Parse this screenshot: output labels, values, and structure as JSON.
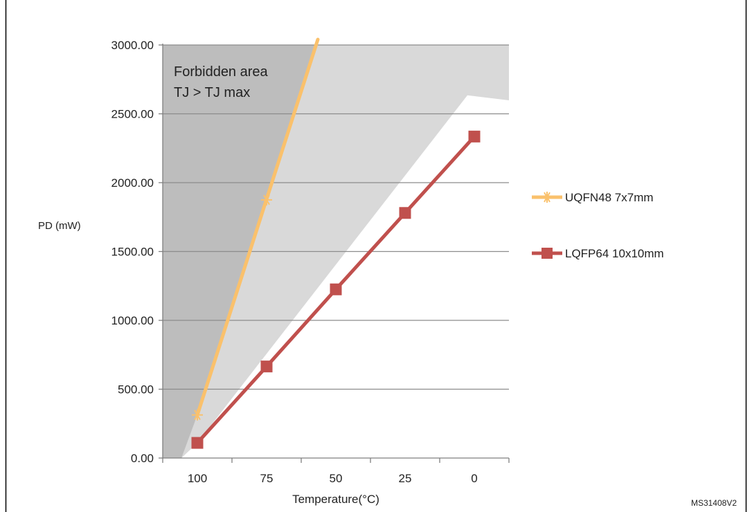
{
  "figure_id": "MS31408V2",
  "chart_data": {
    "type": "line",
    "ylabel": "PD (mW)",
    "xlabel": "Temperature(°C)",
    "x": [
      100,
      75,
      50,
      25,
      0
    ],
    "x_reversed": true,
    "xlim": [
      112.5,
      -12.5
    ],
    "ylim": [
      0,
      3000
    ],
    "yticks": [
      "0.00",
      "500.00",
      "1000.00",
      "1500.00",
      "2000.00",
      "2500.00",
      "3000.00"
    ],
    "xticks": [
      "100",
      "75",
      "50",
      "25",
      "0"
    ],
    "grid": "horizontal",
    "legend": "right",
    "series": [
      {
        "name": "UQFN48 7x7mm",
        "color": "#FAC16C",
        "marker": "star",
        "x": [
          100,
          75
        ],
        "values": [
          313,
          1875
        ],
        "extends_to": {
          "x": 56.5,
          "y": 3040
        }
      },
      {
        "name": "LQFP64 10x10mm",
        "color": "#C0504D",
        "marker": "square",
        "x": [
          100,
          75,
          50,
          25,
          0
        ],
        "values": [
          110,
          665,
          1225,
          1780,
          2335
        ]
      }
    ],
    "annotations": [
      {
        "text": "Forbidden area"
      },
      {
        "text": "TJ > TJ max"
      }
    ],
    "colors": {
      "forbidden": "#bdbdbd",
      "allowed": "#d9d9d9",
      "grid": "#8c8c8c",
      "axis": "#7f7f7f"
    }
  }
}
